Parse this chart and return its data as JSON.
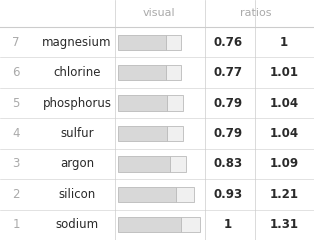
{
  "rows": [
    {
      "rank": "7",
      "element": "magnesium",
      "visual": 0.76,
      "ratio_val": 0.76,
      "ratio2": 1.0
    },
    {
      "rank": "6",
      "element": "chlorine",
      "visual": 0.77,
      "ratio_val": 0.77,
      "ratio2": 1.01
    },
    {
      "rank": "5",
      "element": "phosphorus",
      "visual": 0.79,
      "ratio_val": 0.79,
      "ratio2": 1.04
    },
    {
      "rank": "4",
      "element": "sulfur",
      "visual": 0.79,
      "ratio_val": 0.79,
      "ratio2": 1.04
    },
    {
      "rank": "3",
      "element": "argon",
      "visual": 0.83,
      "ratio_val": 0.83,
      "ratio2": 1.09
    },
    {
      "rank": "2",
      "element": "silicon",
      "visual": 0.93,
      "ratio_val": 0.93,
      "ratio2": 1.21
    },
    {
      "rank": "1",
      "element": "sodium",
      "visual": 1.0,
      "ratio_val": 1.0,
      "ratio2": 1.31
    }
  ],
  "header_visual": "visual",
  "header_ratios": "ratios",
  "bg_color": "#ffffff",
  "text_color": "#2a2a2a",
  "rank_color": "#aaaaaa",
  "bar_gray_color": "#d8d8d8",
  "bar_white_color": "#f0f0f0",
  "bar_edge_color": "#bbbbbb",
  "grid_color": "#cccccc",
  "font_size_header": 8.0,
  "font_size_data": 8.5,
  "font_size_rank": 8.5
}
